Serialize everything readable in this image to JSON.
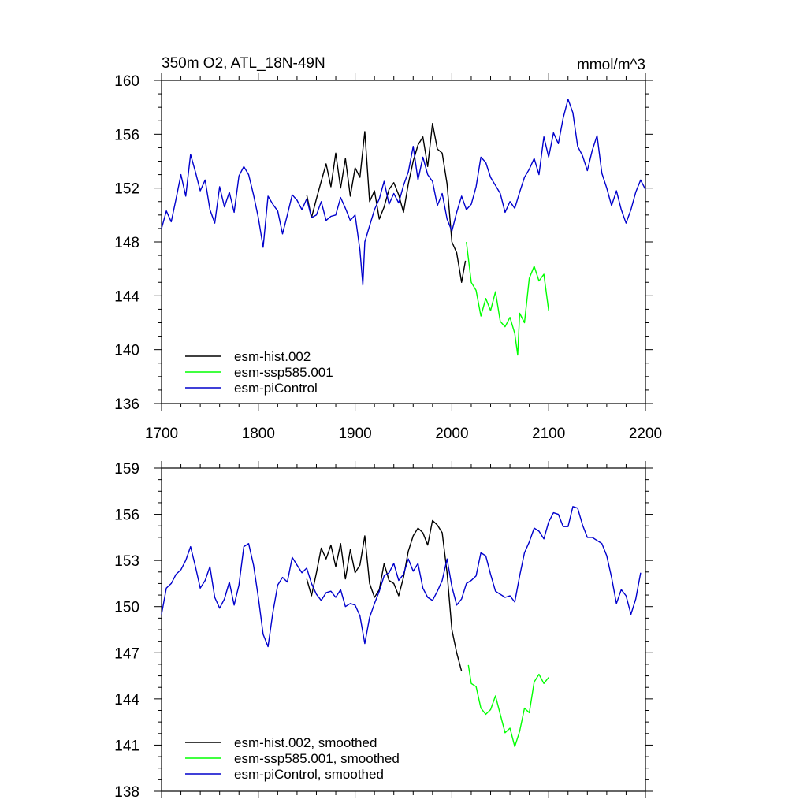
{
  "chart_data": [
    {
      "type": "line",
      "title": "350m O2, ATL_18N-49N",
      "title_right": "mmol/m^3",
      "xlabel": "",
      "ylabel": "",
      "xlim": [
        1700,
        2200
      ],
      "ylim": [
        136,
        160
      ],
      "x_ticks": [
        1700,
        1800,
        1900,
        2000,
        2100,
        2200
      ],
      "x_tick_labels": [
        "1700",
        "1800",
        "1900",
        "2000",
        "2100",
        "2200"
      ],
      "y_ticks": [
        136,
        140,
        144,
        148,
        152,
        156,
        160
      ],
      "y_tick_labels": [
        "136",
        "140",
        "144",
        "148",
        "152",
        "156",
        "160"
      ],
      "grid": false,
      "legend_position": "bottom-left",
      "series": [
        {
          "name": "esm-hist.002",
          "color": "#000000",
          "x": [
            1850,
            1855,
            1860,
            1865,
            1870,
            1875,
            1880,
            1885,
            1890,
            1895,
            1900,
            1905,
            1910,
            1915,
            1920,
            1925,
            1930,
            1935,
            1940,
            1945,
            1950,
            1955,
            1960,
            1965,
            1970,
            1975,
            1980,
            1985,
            1990,
            1995,
            2000,
            2005,
            2010,
            2014
          ],
          "y": [
            151.5,
            149.8,
            151.2,
            152.5,
            153.8,
            152.1,
            154.6,
            152.0,
            154.2,
            151.4,
            153.5,
            152.8,
            156.2,
            151.0,
            151.8,
            149.7,
            150.6,
            151.9,
            152.4,
            151.5,
            150.2,
            152.3,
            154.0,
            155.2,
            155.8,
            153.6,
            156.8,
            154.9,
            154.6,
            152.3,
            148.0,
            147.2,
            145.0,
            146.6
          ]
        },
        {
          "name": "esm-ssp585.001",
          "color": "#00ff00",
          "x": [
            2015,
            2020,
            2025,
            2030,
            2035,
            2040,
            2045,
            2050,
            2055,
            2060,
            2065,
            2068,
            2070,
            2075,
            2080,
            2085,
            2090,
            2095,
            2100
          ],
          "y": [
            148.0,
            145.0,
            144.4,
            142.5,
            143.8,
            142.9,
            144.3,
            142.1,
            141.7,
            142.4,
            141.2,
            139.6,
            142.7,
            142.0,
            145.3,
            146.2,
            145.1,
            145.6,
            142.9
          ]
        },
        {
          "name": "esm-piControl",
          "color": "#0000cc",
          "x": [
            1700,
            1705,
            1710,
            1715,
            1720,
            1725,
            1730,
            1735,
            1740,
            1745,
            1750,
            1755,
            1760,
            1765,
            1770,
            1775,
            1780,
            1785,
            1790,
            1795,
            1800,
            1805,
            1810,
            1815,
            1820,
            1825,
            1830,
            1835,
            1840,
            1845,
            1850,
            1855,
            1860,
            1865,
            1870,
            1875,
            1880,
            1885,
            1890,
            1895,
            1900,
            1905,
            1908,
            1910,
            1915,
            1920,
            1925,
            1930,
            1935,
            1940,
            1945,
            1950,
            1955,
            1960,
            1965,
            1970,
            1975,
            1980,
            1985,
            1990,
            1995,
            2000,
            2005,
            2010,
            2015,
            2020,
            2025,
            2030,
            2035,
            2040,
            2045,
            2050,
            2055,
            2060,
            2065,
            2070,
            2075,
            2080,
            2085,
            2090,
            2095,
            2100,
            2105,
            2110,
            2115,
            2120,
            2125,
            2130,
            2135,
            2140,
            2145,
            2150,
            2155,
            2160,
            2165,
            2170,
            2175,
            2180,
            2185,
            2190,
            2195,
            2200
          ],
          "y": [
            149.0,
            150.3,
            149.5,
            151.2,
            153.0,
            151.4,
            154.5,
            153.2,
            151.8,
            152.6,
            150.4,
            149.4,
            152.1,
            150.6,
            151.7,
            150.2,
            152.9,
            153.6,
            153.0,
            151.5,
            149.8,
            147.6,
            151.4,
            150.8,
            150.3,
            148.6,
            150.0,
            151.5,
            151.1,
            150.4,
            151.2,
            149.8,
            150.0,
            151.0,
            149.6,
            149.9,
            150.0,
            151.3,
            150.5,
            149.6,
            150.0,
            147.4,
            144.8,
            148.0,
            149.2,
            150.4,
            151.2,
            152.5,
            150.8,
            151.6,
            150.9,
            152.2,
            153.2,
            155.1,
            152.6,
            154.3,
            153.0,
            152.5,
            150.7,
            151.6,
            149.7,
            148.8,
            150.2,
            151.4,
            150.4,
            150.8,
            152.1,
            154.3,
            153.9,
            152.8,
            152.2,
            151.6,
            150.2,
            151.0,
            150.5,
            151.7,
            152.8,
            153.4,
            154.2,
            153.0,
            155.8,
            154.3,
            156.1,
            155.3,
            157.2,
            158.6,
            157.6,
            155.1,
            154.4,
            153.3,
            154.8,
            155.9,
            153.1,
            152.0,
            150.7,
            151.8,
            150.4,
            149.4,
            150.4,
            151.7,
            152.6,
            151.9
          ]
        }
      ]
    },
    {
      "type": "line",
      "title": "",
      "xlabel": "",
      "ylabel": "",
      "xlim": [
        1700,
        2200
      ],
      "ylim": [
        138,
        159
      ],
      "x_ticks": [
        1700,
        1800,
        1900,
        2000,
        2100,
        2200
      ],
      "x_tick_labels": [],
      "y_ticks": [
        138,
        141,
        144,
        147,
        150,
        153,
        156,
        159
      ],
      "y_tick_labels": [
        "138",
        "141",
        "144",
        "147",
        "150",
        "153",
        "156",
        "159"
      ],
      "grid": false,
      "legend_position": "bottom-left",
      "series": [
        {
          "name": "esm-hist.002, smoothed",
          "color": "#000000",
          "x": [
            1850,
            1855,
            1860,
            1865,
            1870,
            1875,
            1880,
            1885,
            1890,
            1895,
            1900,
            1905,
            1910,
            1915,
            1920,
            1925,
            1930,
            1935,
            1940,
            1945,
            1950,
            1955,
            1960,
            1965,
            1970,
            1975,
            1980,
            1985,
            1990,
            1995,
            2000,
            2005,
            2010
          ],
          "y": [
            151.8,
            150.7,
            152.2,
            153.8,
            153.1,
            154.0,
            152.6,
            154.1,
            151.8,
            153.7,
            152.2,
            152.7,
            154.6,
            151.5,
            150.6,
            151.1,
            152.8,
            151.7,
            151.5,
            150.7,
            151.9,
            153.6,
            154.6,
            155.1,
            154.8,
            154.0,
            155.6,
            155.3,
            154.8,
            152.2,
            148.5,
            147.0,
            145.8
          ]
        },
        {
          "name": "esm-ssp585.001, smoothed",
          "color": "#00ff00",
          "x": [
            2017,
            2020,
            2025,
            2030,
            2035,
            2040,
            2045,
            2050,
            2055,
            2060,
            2065,
            2070,
            2075,
            2080,
            2085,
            2090,
            2095,
            2100
          ],
          "y": [
            146.2,
            145.0,
            144.8,
            143.4,
            143.0,
            143.3,
            144.2,
            143.0,
            141.8,
            142.1,
            140.9,
            141.9,
            143.4,
            143.1,
            145.1,
            145.6,
            145.0,
            145.4
          ]
        },
        {
          "name": "esm-piControl, smoothed",
          "color": "#0000cc",
          "x": [
            1700,
            1705,
            1710,
            1715,
            1720,
            1725,
            1730,
            1735,
            1740,
            1745,
            1750,
            1755,
            1760,
            1765,
            1770,
            1775,
            1780,
            1785,
            1790,
            1795,
            1800,
            1805,
            1810,
            1815,
            1820,
            1825,
            1830,
            1835,
            1840,
            1845,
            1850,
            1855,
            1860,
            1865,
            1870,
            1875,
            1880,
            1885,
            1890,
            1895,
            1900,
            1905,
            1910,
            1915,
            1920,
            1925,
            1930,
            1935,
            1940,
            1945,
            1950,
            1955,
            1960,
            1965,
            1970,
            1975,
            1980,
            1985,
            1990,
            1995,
            2000,
            2005,
            2010,
            2015,
            2020,
            2025,
            2030,
            2035,
            2040,
            2045,
            2050,
            2055,
            2060,
            2065,
            2070,
            2075,
            2080,
            2085,
            2090,
            2095,
            2100,
            2105,
            2110,
            2115,
            2120,
            2125,
            2130,
            2135,
            2140,
            2145,
            2150,
            2155,
            2160,
            2165,
            2170,
            2175,
            2180,
            2185,
            2190,
            2195
          ],
          "y": [
            149.5,
            151.2,
            151.5,
            152.1,
            152.4,
            153.0,
            153.9,
            152.6,
            151.2,
            151.7,
            152.6,
            150.6,
            149.9,
            150.5,
            151.6,
            150.1,
            151.4,
            153.9,
            154.1,
            152.7,
            150.6,
            148.2,
            147.4,
            149.6,
            151.4,
            151.9,
            151.6,
            153.2,
            152.7,
            152.2,
            152.5,
            151.5,
            150.8,
            150.4,
            150.9,
            151.0,
            150.6,
            151.1,
            150.0,
            150.2,
            150.1,
            149.4,
            147.6,
            149.3,
            150.2,
            151.0,
            152.0,
            152.2,
            152.8,
            151.7,
            152.1,
            153.1,
            152.3,
            152.8,
            151.2,
            150.6,
            150.4,
            151.0,
            151.7,
            153.1,
            151.3,
            150.1,
            150.5,
            151.5,
            151.7,
            152.0,
            153.5,
            153.3,
            152.1,
            151.0,
            150.8,
            150.6,
            150.7,
            150.3,
            152.0,
            153.5,
            154.2,
            155.1,
            154.9,
            154.4,
            155.5,
            156.1,
            156.0,
            155.2,
            155.2,
            156.5,
            156.4,
            155.3,
            154.5,
            154.5,
            154.3,
            154.1,
            153.3,
            151.9,
            150.2,
            151.1,
            150.7,
            149.5,
            150.5,
            152.2
          ]
        }
      ]
    }
  ]
}
